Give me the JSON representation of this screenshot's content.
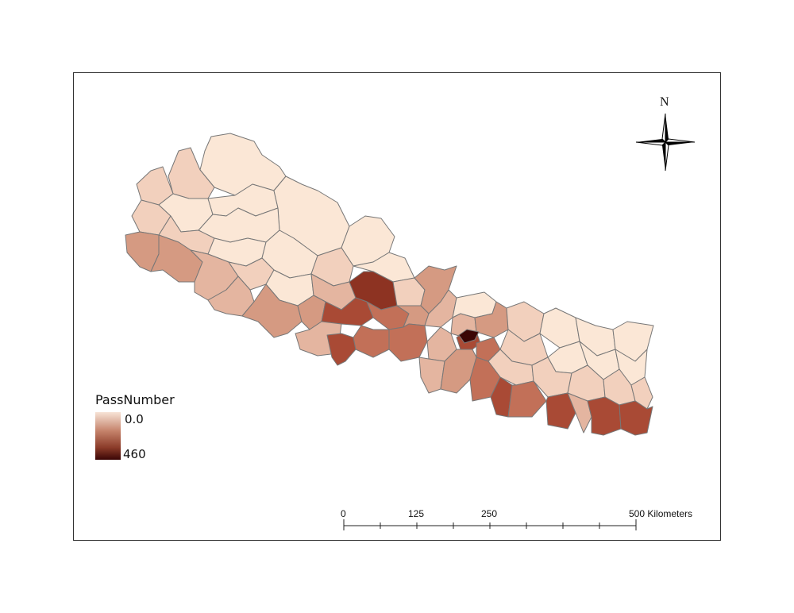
{
  "legend": {
    "title": "PassNumber",
    "min_label": "0.0",
    "max_label": "460",
    "min_color": "#f7e3d6",
    "max_color": "#3a0505"
  },
  "scale_bar": {
    "labels": [
      "0",
      "125",
      "250",
      "500 Kilometers"
    ]
  },
  "north_arrow": {
    "label": "N",
    "icon": "compass-rose-icon"
  },
  "map": {
    "colors": {
      "lightest": "#fbe7d6",
      "light": "#f2d0bd",
      "medium_light": "#e4b5a0",
      "medium": "#d59a82",
      "medium_dark": "#c27058",
      "dark": "#a94a35",
      "darker": "#8d3322",
      "darkest": "#3a0505",
      "border": "#777777"
    }
  }
}
